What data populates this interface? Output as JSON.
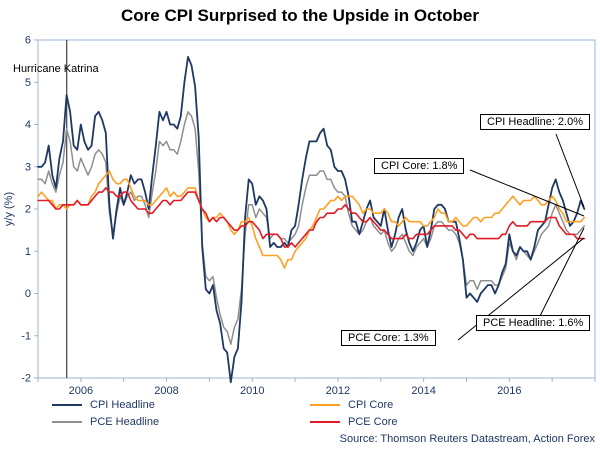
{
  "title": "Core CPI Surprised to the Upside in October",
  "source": "Source: Thomson Reuters Datastream, Action Forex",
  "annotations": {
    "katrina": "Hurricane Katrina",
    "cpi_core": "CPI Core: 1.8%",
    "cpi_headline": "CPI Headline: 2.0%",
    "pce_core": "PCE Core: 1.3%",
    "pce_headline": "PCE Headline: 1.6%"
  },
  "legend": [
    {
      "label": "CPI Headline",
      "color": "#1f3864"
    },
    {
      "label": "PCE Headline",
      "color": "#8f8f8f"
    },
    {
      "label": "CPI Core",
      "color": "#ffa022"
    },
    {
      "label": "PCE Core",
      "color": "#e41b23"
    }
  ],
  "colors": {
    "axis_frame": "#9cb6cf",
    "tick_text": "#1f3864",
    "event_line": "#404040",
    "leader": "#000000"
  },
  "chart_data": {
    "type": "line",
    "title": "Core CPI Surprised to the Upside in October",
    "xlabel": "",
    "ylabel": "y/y (%)",
    "ylim": [
      -2,
      6
    ],
    "xlim": [
      2005,
      2018
    ],
    "y_ticks": [
      6,
      5,
      4,
      3,
      2,
      1,
      0,
      -1,
      -2
    ],
    "x_ticks": [
      2006,
      2008,
      2010,
      2012,
      2014,
      2016
    ],
    "x_start": 2005,
    "x_step": "monthly",
    "grid": "off",
    "legend_position": "bottom",
    "event_line": {
      "x": 2005.67,
      "label": "Hurricane Katrina"
    },
    "series": [
      {
        "name": "PCE Headline",
        "color": "#8f8f8f",
        "width": 1.5,
        "values": [
          2.7,
          2.7,
          2.6,
          2.9,
          2.6,
          2.4,
          2.8,
          3.1,
          3.9,
          3.6,
          3.0,
          2.9,
          3.2,
          3.0,
          2.8,
          3.0,
          3.3,
          3.4,
          3.3,
          3.1,
          1.9,
          1.4,
          1.9,
          2.3,
          2.1,
          2.3,
          2.4,
          2.2,
          2.3,
          2.3,
          2.1,
          1.8,
          2.4,
          2.9,
          3.6,
          3.5,
          3.6,
          3.4,
          3.4,
          3.3,
          3.6,
          4.0,
          4.3,
          4.2,
          3.9,
          2.9,
          1.2,
          0.4,
          0.3,
          0.4,
          -0.1,
          -0.5,
          -0.8,
          -0.9,
          -1.2,
          -0.8,
          -0.6,
          0.1,
          1.4,
          2.1,
          2.1,
          1.8,
          2.0,
          1.9,
          1.8,
          1.3,
          1.4,
          1.4,
          1.3,
          1.3,
          1.2,
          1.3,
          1.4,
          1.6,
          2.1,
          2.5,
          2.8,
          2.8,
          2.8,
          2.9,
          2.9,
          2.7,
          2.7,
          2.5,
          2.4,
          2.4,
          2.3,
          1.9,
          1.6,
          1.5,
          1.4,
          1.5,
          1.7,
          1.8,
          1.6,
          1.5,
          1.4,
          1.5,
          1.2,
          1.0,
          1.1,
          1.3,
          1.4,
          1.2,
          1.0,
          0.9,
          1.1,
          1.2,
          1.3,
          1.1,
          1.3,
          1.6,
          1.7,
          1.7,
          1.6,
          1.5,
          1.5,
          1.4,
          1.2,
          0.8,
          0.2,
          0.3,
          0.3,
          0.1,
          0.3,
          0.3,
          0.3,
          0.3,
          0.2,
          0.2,
          0.4,
          0.6,
          1.2,
          1.0,
          0.8,
          1.1,
          1.0,
          0.9,
          0.8,
          1.0,
          1.2,
          1.4,
          1.5,
          1.6,
          1.9,
          2.1,
          1.9,
          1.7,
          1.5,
          1.4,
          1.4,
          1.4,
          1.5,
          1.6
        ]
      },
      {
        "name": "CPI Headline",
        "color": "#1f3864",
        "width": 1.8,
        "values": [
          3.0,
          3.0,
          3.1,
          3.5,
          2.8,
          2.5,
          3.2,
          3.6,
          4.7,
          4.3,
          3.5,
          3.4,
          4.0,
          3.6,
          3.4,
          3.5,
          4.2,
          4.3,
          4.1,
          3.8,
          2.1,
          1.3,
          2.0,
          2.5,
          2.1,
          2.4,
          2.8,
          2.6,
          2.7,
          2.7,
          2.4,
          2.0,
          2.8,
          3.5,
          4.3,
          4.1,
          4.3,
          4.0,
          4.0,
          3.9,
          4.2,
          5.0,
          5.6,
          5.4,
          4.9,
          3.7,
          1.1,
          0.1,
          0.0,
          0.2,
          -0.4,
          -0.7,
          -1.3,
          -1.4,
          -2.1,
          -1.5,
          -1.3,
          -0.2,
          1.8,
          2.7,
          2.6,
          2.1,
          2.3,
          2.2,
          2.0,
          1.1,
          1.2,
          1.1,
          1.1,
          1.2,
          1.1,
          1.5,
          1.6,
          2.1,
          2.7,
          3.2,
          3.6,
          3.6,
          3.6,
          3.8,
          3.9,
          3.5,
          3.4,
          3.0,
          2.9,
          2.9,
          2.7,
          2.3,
          1.7,
          1.7,
          1.4,
          1.7,
          2.0,
          2.2,
          1.8,
          1.7,
          1.6,
          2.0,
          1.5,
          1.1,
          1.4,
          1.8,
          2.0,
          1.5,
          1.2,
          1.0,
          1.2,
          1.5,
          1.6,
          1.1,
          1.5,
          2.0,
          2.1,
          2.1,
          2.0,
          1.7,
          1.7,
          1.7,
          1.3,
          0.8,
          -0.1,
          0.0,
          -0.1,
          -0.2,
          0.0,
          0.1,
          0.2,
          0.2,
          0.0,
          0.2,
          0.5,
          0.7,
          1.4,
          1.0,
          0.9,
          1.1,
          1.0,
          1.0,
          0.8,
          1.1,
          1.5,
          1.6,
          1.7,
          2.1,
          2.5,
          2.7,
          2.4,
          2.2,
          1.9,
          1.6,
          1.7,
          1.9,
          2.2,
          2.0
        ]
      },
      {
        "name": "CPI Core",
        "color": "#ffa022",
        "width": 1.6,
        "values": [
          2.3,
          2.4,
          2.3,
          2.2,
          2.2,
          2.0,
          2.1,
          2.1,
          2.0,
          2.1,
          2.1,
          2.2,
          2.1,
          2.1,
          2.1,
          2.3,
          2.4,
          2.6,
          2.7,
          2.8,
          2.9,
          2.7,
          2.6,
          2.6,
          2.7,
          2.7,
          2.5,
          2.3,
          2.2,
          2.2,
          2.2,
          2.1,
          2.1,
          2.2,
          2.3,
          2.4,
          2.5,
          2.3,
          2.4,
          2.3,
          2.3,
          2.4,
          2.5,
          2.5,
          2.5,
          2.2,
          2.0,
          1.8,
          1.7,
          1.8,
          1.8,
          1.9,
          1.8,
          1.7,
          1.5,
          1.4,
          1.5,
          1.7,
          1.7,
          1.8,
          1.6,
          1.3,
          1.1,
          0.9,
          0.9,
          0.9,
          0.9,
          0.9,
          0.8,
          0.6,
          0.8,
          0.8,
          1.0,
          1.1,
          1.2,
          1.3,
          1.5,
          1.6,
          1.8,
          2.0,
          2.0,
          2.1,
          2.2,
          2.2,
          2.3,
          2.2,
          2.3,
          2.3,
          2.3,
          2.2,
          2.1,
          1.9,
          2.0,
          2.0,
          1.9,
          1.9,
          1.9,
          2.0,
          1.9,
          1.7,
          1.7,
          1.6,
          1.7,
          1.8,
          1.7,
          1.7,
          1.7,
          1.7,
          1.6,
          1.6,
          1.7,
          1.8,
          2.0,
          1.9,
          1.9,
          1.7,
          1.7,
          1.8,
          1.7,
          1.6,
          1.6,
          1.7,
          1.8,
          1.8,
          1.7,
          1.8,
          1.8,
          1.8,
          1.9,
          1.9,
          2.0,
          2.1,
          2.2,
          2.3,
          2.2,
          2.1,
          2.2,
          2.2,
          2.2,
          2.3,
          2.2,
          2.1,
          2.1,
          2.2,
          2.3,
          2.2,
          2.0,
          1.9,
          1.7,
          1.7,
          1.7,
          1.7,
          1.7,
          1.8
        ]
      },
      {
        "name": "PCE Core",
        "color": "#e41b23",
        "width": 1.6,
        "values": [
          2.2,
          2.2,
          2.2,
          2.2,
          2.1,
          2.0,
          2.0,
          2.1,
          2.1,
          2.1,
          2.1,
          2.2,
          2.1,
          2.1,
          2.1,
          2.2,
          2.3,
          2.4,
          2.4,
          2.5,
          2.4,
          2.4,
          2.3,
          2.3,
          2.4,
          2.4,
          2.2,
          2.1,
          2.0,
          2.0,
          2.0,
          1.9,
          1.9,
          2.0,
          2.1,
          2.2,
          2.2,
          2.1,
          2.2,
          2.2,
          2.2,
          2.3,
          2.4,
          2.4,
          2.4,
          2.2,
          2.0,
          1.9,
          1.7,
          1.8,
          1.7,
          1.8,
          1.8,
          1.7,
          1.6,
          1.5,
          1.5,
          1.6,
          1.6,
          1.7,
          1.7,
          1.6,
          1.5,
          1.3,
          1.4,
          1.4,
          1.4,
          1.4,
          1.3,
          1.1,
          1.1,
          1.2,
          1.1,
          1.2,
          1.3,
          1.4,
          1.5,
          1.5,
          1.7,
          1.8,
          1.8,
          1.9,
          1.9,
          1.9,
          2.0,
          2.0,
          2.1,
          2.0,
          1.9,
          1.9,
          1.8,
          1.7,
          1.7,
          1.8,
          1.7,
          1.6,
          1.5,
          1.5,
          1.4,
          1.3,
          1.3,
          1.3,
          1.3,
          1.4,
          1.3,
          1.3,
          1.4,
          1.4,
          1.4,
          1.4,
          1.5,
          1.6,
          1.6,
          1.6,
          1.6,
          1.6,
          1.6,
          1.5,
          1.5,
          1.4,
          1.3,
          1.4,
          1.4,
          1.3,
          1.3,
          1.3,
          1.3,
          1.3,
          1.3,
          1.3,
          1.4,
          1.4,
          1.6,
          1.7,
          1.6,
          1.6,
          1.6,
          1.6,
          1.7,
          1.7,
          1.7,
          1.7,
          1.7,
          1.8,
          1.8,
          1.8,
          1.6,
          1.5,
          1.4,
          1.4,
          1.4,
          1.3,
          1.3,
          1.3
        ]
      }
    ]
  }
}
